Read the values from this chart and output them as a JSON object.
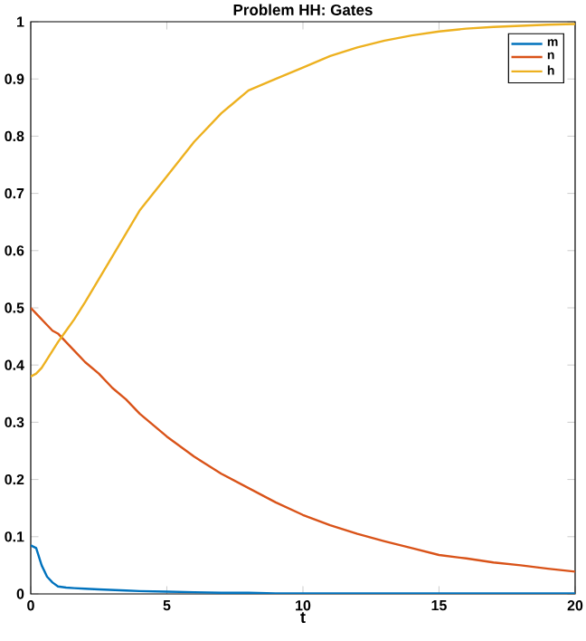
{
  "chart_data": {
    "type": "line",
    "title": "Problem HH: Gates",
    "xlabel": "t",
    "xlim": [
      0,
      20
    ],
    "ylim": [
      0,
      1
    ],
    "xticks": [
      0,
      5,
      10,
      15,
      20
    ],
    "yticks": [
      0,
      0.1,
      0.2,
      0.3,
      0.4,
      0.5,
      0.6,
      0.7,
      0.8,
      0.9,
      1
    ],
    "legend": "top right",
    "marker": "none",
    "line_style": "solid",
    "grid": false,
    "x": [
      0,
      0.2,
      0.4,
      0.6,
      0.8,
      1,
      1.3,
      1.6,
      2,
      2.5,
      3,
      3.5,
      4,
      5,
      6,
      7,
      8,
      9,
      10,
      11,
      12,
      13,
      14,
      15,
      16,
      17,
      18,
      19,
      20
    ],
    "series": [
      {
        "name": "m",
        "color": "#0072bd",
        "values": [
          0.085,
          0.08,
          0.05,
          0.03,
          0.02,
          0.013,
          0.011,
          0.01,
          0.009,
          0.008,
          0.007,
          0.006,
          0.005,
          0.004,
          0.003,
          0.002,
          0.002,
          0.001,
          0.001,
          0.001,
          0.001,
          0.001,
          0.001,
          0.001,
          0.001,
          0.001,
          0.001,
          0.001,
          0.001
        ]
      },
      {
        "name": "n",
        "color": "#d95319",
        "values": [
          0.5,
          0.49,
          0.48,
          0.47,
          0.46,
          0.455,
          0.44,
          0.425,
          0.405,
          0.385,
          0.36,
          0.34,
          0.315,
          0.275,
          0.24,
          0.21,
          0.185,
          0.16,
          0.138,
          0.12,
          0.105,
          0.092,
          0.08,
          0.068,
          0.062,
          0.055,
          0.05,
          0.044,
          0.039
        ]
      },
      {
        "name": "h",
        "color": "#edb120",
        "values": [
          0.38,
          0.385,
          0.395,
          0.41,
          0.425,
          0.44,
          0.46,
          0.48,
          0.51,
          0.55,
          0.59,
          0.63,
          0.67,
          0.73,
          0.79,
          0.84,
          0.88,
          0.9,
          0.92,
          0.94,
          0.955,
          0.967,
          0.976,
          0.983,
          0.988,
          0.991,
          0.993,
          0.995,
          0.996
        ]
      }
    ]
  }
}
